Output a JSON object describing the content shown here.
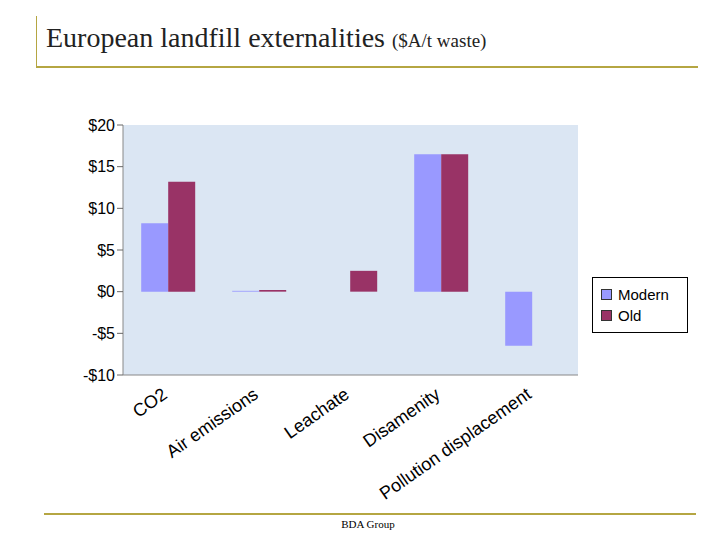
{
  "chart_data": {
    "type": "bar",
    "title": "European landfill externalities ($A/t waste)",
    "categories": [
      "CO2",
      "Air emissions",
      "Leachate",
      "Disamenity",
      "Pollution displacement"
    ],
    "series": [
      {
        "name": "Modern",
        "color": "#9999ff",
        "values": [
          8.2,
          0.1,
          0,
          16.5,
          -6.5
        ]
      },
      {
        "name": "Old",
        "color": "#993366",
        "values": [
          13.2,
          0.2,
          2.5,
          16.5,
          0
        ]
      }
    ],
    "ylim": [
      -10,
      20
    ],
    "yticks": [
      {
        "value": -10,
        "label": "-$10"
      },
      {
        "value": -5,
        "label": "-$5"
      },
      {
        "value": 0,
        "label": "$0"
      },
      {
        "value": 5,
        "label": "$5"
      },
      {
        "value": 10,
        "label": "$10"
      },
      {
        "value": 15,
        "label": "$15"
      },
      {
        "value": 20,
        "label": "$20"
      }
    ],
    "grid": false,
    "legend": "right",
    "footer": "BDA Group"
  }
}
